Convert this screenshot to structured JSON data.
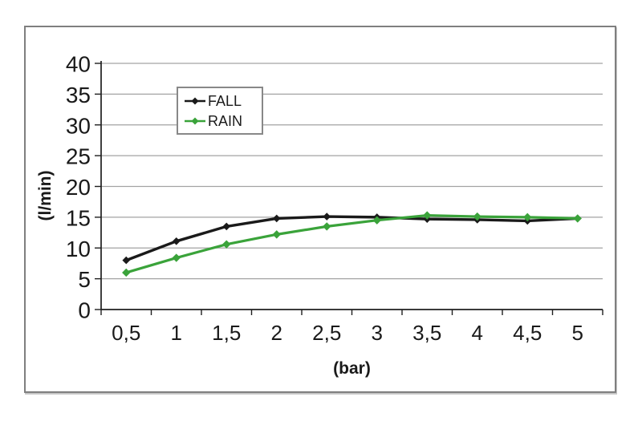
{
  "chart_data": {
    "type": "line",
    "x": [
      0.5,
      1,
      1.5,
      2,
      2.5,
      3,
      3.5,
      4,
      4.5,
      5
    ],
    "x_tick_labels": [
      "0,5",
      "1",
      "1,5",
      "2",
      "2,5",
      "3",
      "3,5",
      "4",
      "4,5",
      "5"
    ],
    "series": [
      {
        "name": "FALL",
        "color": "#1a1a1a",
        "marker": "diamond",
        "values": [
          8.0,
          11.1,
          13.5,
          14.8,
          15.1,
          15.0,
          14.7,
          14.6,
          14.4,
          14.8
        ]
      },
      {
        "name": "RAIN",
        "color": "#3aa33a",
        "marker": "diamond",
        "values": [
          6.0,
          8.4,
          10.6,
          12.2,
          13.5,
          14.5,
          15.3,
          15.1,
          15.0,
          14.8
        ]
      }
    ],
    "xlabel": "(bar)",
    "ylabel": "(l/min)",
    "ylim": [
      0,
      40
    ],
    "y_ticks": [
      0,
      5,
      10,
      15,
      20,
      25,
      30,
      35,
      40
    ],
    "grid": true,
    "gridline_color": "#a3a3a3",
    "axis_color": "#1f1f1f",
    "tick_label_color": "#1a1a1a",
    "legend_position": "inside-top-center",
    "frame_border_color": "#7f7f7f",
    "background_color": "#ffffff"
  }
}
